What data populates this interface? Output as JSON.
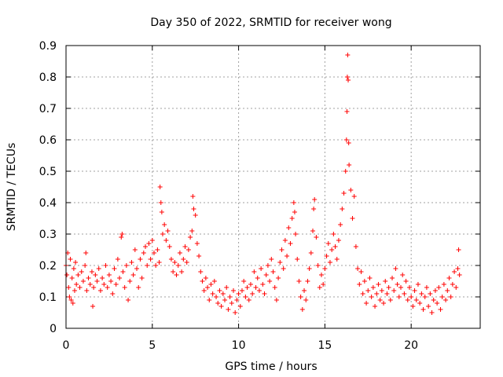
{
  "chart_data": {
    "type": "scatter",
    "title": "Day 350 of 2022, SRMTID for receiver wong",
    "xlabel": "GPS time / hours",
    "ylabel": "SRMTID / TECUs",
    "xlim": [
      0,
      24
    ],
    "ylim": [
      0,
      0.9
    ],
    "xticks": [
      0,
      5,
      10,
      15,
      20
    ],
    "xtick_labels": [
      "0",
      "5",
      "10",
      "15",
      "20"
    ],
    "yticks": [
      0,
      0.1,
      0.2,
      0.3,
      0.4,
      0.5,
      0.6,
      0.7,
      0.8,
      0.9
    ],
    "ytick_labels": [
      "0",
      "0.1",
      "0.2",
      "0.3",
      "0.4",
      "0.5",
      "0.6",
      "0.7",
      "0.8",
      "0.9"
    ],
    "grid": true,
    "marker": "+",
    "color": "#ff0000",
    "series": [
      {
        "name": "SRMTID",
        "points": [
          [
            0.0,
            0.2
          ],
          [
            0.05,
            0.17
          ],
          [
            0.1,
            0.24
          ],
          [
            0.15,
            0.13
          ],
          [
            0.2,
            0.1
          ],
          [
            0.25,
            0.22
          ],
          [
            0.3,
            0.09
          ],
          [
            0.35,
            0.16
          ],
          [
            0.4,
            0.08
          ],
          [
            0.45,
            0.19
          ],
          [
            0.5,
            0.12
          ],
          [
            0.55,
            0.21
          ],
          [
            0.6,
            0.14
          ],
          [
            0.7,
            0.17
          ],
          [
            0.8,
            0.13
          ],
          [
            0.9,
            0.18
          ],
          [
            1.0,
            0.15
          ],
          [
            1.1,
            0.2
          ],
          [
            1.15,
            0.24
          ],
          [
            1.2,
            0.12
          ],
          [
            1.3,
            0.16
          ],
          [
            1.4,
            0.14
          ],
          [
            1.5,
            0.18
          ],
          [
            1.55,
            0.07
          ],
          [
            1.6,
            0.13
          ],
          [
            1.7,
            0.17
          ],
          [
            1.8,
            0.15
          ],
          [
            1.9,
            0.19
          ],
          [
            2.0,
            0.12
          ],
          [
            2.1,
            0.16
          ],
          [
            2.2,
            0.14
          ],
          [
            2.3,
            0.2
          ],
          [
            2.4,
            0.13
          ],
          [
            2.5,
            0.17
          ],
          [
            2.6,
            0.15
          ],
          [
            2.7,
            0.11
          ],
          [
            2.8,
            0.19
          ],
          [
            2.9,
            0.14
          ],
          [
            3.0,
            0.22
          ],
          [
            3.1,
            0.16
          ],
          [
            3.2,
            0.29
          ],
          [
            3.25,
            0.3
          ],
          [
            3.3,
            0.18
          ],
          [
            3.4,
            0.13
          ],
          [
            3.5,
            0.2
          ],
          [
            3.6,
            0.09
          ],
          [
            3.7,
            0.15
          ],
          [
            3.8,
            0.21
          ],
          [
            3.9,
            0.17
          ],
          [
            4.0,
            0.25
          ],
          [
            4.1,
            0.19
          ],
          [
            4.2,
            0.13
          ],
          [
            4.3,
            0.22
          ],
          [
            4.4,
            0.16
          ],
          [
            4.5,
            0.24
          ],
          [
            4.6,
            0.26
          ],
          [
            4.7,
            0.2
          ],
          [
            4.8,
            0.27
          ],
          [
            4.9,
            0.22
          ],
          [
            5.0,
            0.28
          ],
          [
            5.1,
            0.24
          ],
          [
            5.2,
            0.2
          ],
          [
            5.3,
            0.25
          ],
          [
            5.4,
            0.21
          ],
          [
            5.45,
            0.45
          ],
          [
            5.5,
            0.4
          ],
          [
            5.55,
            0.37
          ],
          [
            5.6,
            0.3
          ],
          [
            5.7,
            0.33
          ],
          [
            5.8,
            0.28
          ],
          [
            5.9,
            0.31
          ],
          [
            6.0,
            0.26
          ],
          [
            6.1,
            0.22
          ],
          [
            6.2,
            0.18
          ],
          [
            6.3,
            0.21
          ],
          [
            6.4,
            0.17
          ],
          [
            6.5,
            0.2
          ],
          [
            6.6,
            0.24
          ],
          [
            6.7,
            0.18
          ],
          [
            6.8,
            0.22
          ],
          [
            6.9,
            0.26
          ],
          [
            7.0,
            0.21
          ],
          [
            7.1,
            0.25
          ],
          [
            7.2,
            0.29
          ],
          [
            7.3,
            0.31
          ],
          [
            7.35,
            0.42
          ],
          [
            7.4,
            0.38
          ],
          [
            7.5,
            0.36
          ],
          [
            7.6,
            0.27
          ],
          [
            7.7,
            0.23
          ],
          [
            7.8,
            0.18
          ],
          [
            7.9,
            0.15
          ],
          [
            8.0,
            0.12
          ],
          [
            8.1,
            0.16
          ],
          [
            8.2,
            0.13
          ],
          [
            8.3,
            0.09
          ],
          [
            8.4,
            0.14
          ],
          [
            8.5,
            0.11
          ],
          [
            8.6,
            0.15
          ],
          [
            8.7,
            0.1
          ],
          [
            8.8,
            0.08
          ],
          [
            8.9,
            0.12
          ],
          [
            9.0,
            0.07
          ],
          [
            9.1,
            0.11
          ],
          [
            9.2,
            0.09
          ],
          [
            9.3,
            0.13
          ],
          [
            9.4,
            0.06
          ],
          [
            9.5,
            0.1
          ],
          [
            9.6,
            0.08
          ],
          [
            9.7,
            0.12
          ],
          [
            9.8,
            0.05
          ],
          [
            9.9,
            0.09
          ],
          [
            10.0,
            0.11
          ],
          [
            10.1,
            0.07
          ],
          [
            10.2,
            0.12
          ],
          [
            10.3,
            0.15
          ],
          [
            10.4,
            0.1
          ],
          [
            10.5,
            0.13
          ],
          [
            10.6,
            0.09
          ],
          [
            10.7,
            0.14
          ],
          [
            10.8,
            0.11
          ],
          [
            10.9,
            0.18
          ],
          [
            11.0,
            0.13
          ],
          [
            11.1,
            0.16
          ],
          [
            11.2,
            0.12
          ],
          [
            11.3,
            0.19
          ],
          [
            11.4,
            0.14
          ],
          [
            11.5,
            0.11
          ],
          [
            11.6,
            0.17
          ],
          [
            11.7,
            0.2
          ],
          [
            11.8,
            0.15
          ],
          [
            11.9,
            0.22
          ],
          [
            12.0,
            0.18
          ],
          [
            12.1,
            0.13
          ],
          [
            12.2,
            0.09
          ],
          [
            12.3,
            0.16
          ],
          [
            12.4,
            0.21
          ],
          [
            12.5,
            0.25
          ],
          [
            12.6,
            0.19
          ],
          [
            12.7,
            0.28
          ],
          [
            12.8,
            0.23
          ],
          [
            12.9,
            0.32
          ],
          [
            13.0,
            0.27
          ],
          [
            13.1,
            0.35
          ],
          [
            13.2,
            0.4
          ],
          [
            13.25,
            0.37
          ],
          [
            13.3,
            0.3
          ],
          [
            13.4,
            0.22
          ],
          [
            13.5,
            0.15
          ],
          [
            13.6,
            0.1
          ],
          [
            13.7,
            0.06
          ],
          [
            13.8,
            0.12
          ],
          [
            13.9,
            0.09
          ],
          [
            14.0,
            0.15
          ],
          [
            14.1,
            0.19
          ],
          [
            14.2,
            0.24
          ],
          [
            14.3,
            0.31
          ],
          [
            14.35,
            0.38
          ],
          [
            14.4,
            0.41
          ],
          [
            14.5,
            0.29
          ],
          [
            14.6,
            0.2
          ],
          [
            14.7,
            0.13
          ],
          [
            14.8,
            0.17
          ],
          [
            14.9,
            0.14
          ],
          [
            15.0,
            0.19
          ],
          [
            15.1,
            0.23
          ],
          [
            15.2,
            0.27
          ],
          [
            15.3,
            0.21
          ],
          [
            15.4,
            0.25
          ],
          [
            15.5,
            0.3
          ],
          [
            15.6,
            0.26
          ],
          [
            15.7,
            0.22
          ],
          [
            15.8,
            0.28
          ],
          [
            15.9,
            0.33
          ],
          [
            16.0,
            0.38
          ],
          [
            16.1,
            0.43
          ],
          [
            16.2,
            0.5
          ],
          [
            16.25,
            0.6
          ],
          [
            16.28,
            0.69
          ],
          [
            16.3,
            0.8
          ],
          [
            16.32,
            0.87
          ],
          [
            16.35,
            0.79
          ],
          [
            16.38,
            0.59
          ],
          [
            16.4,
            0.52
          ],
          [
            16.5,
            0.44
          ],
          [
            16.6,
            0.35
          ],
          [
            16.7,
            0.42
          ],
          [
            16.8,
            0.26
          ],
          [
            16.9,
            0.19
          ],
          [
            17.0,
            0.14
          ],
          [
            17.1,
            0.18
          ],
          [
            17.2,
            0.11
          ],
          [
            17.3,
            0.15
          ],
          [
            17.4,
            0.08
          ],
          [
            17.5,
            0.12
          ],
          [
            17.6,
            0.16
          ],
          [
            17.7,
            0.1
          ],
          [
            17.8,
            0.13
          ],
          [
            17.9,
            0.07
          ],
          [
            18.0,
            0.11
          ],
          [
            18.1,
            0.14
          ],
          [
            18.2,
            0.09
          ],
          [
            18.3,
            0.12
          ],
          [
            18.4,
            0.08
          ],
          [
            18.5,
            0.15
          ],
          [
            18.6,
            0.11
          ],
          [
            18.7,
            0.13
          ],
          [
            18.8,
            0.09
          ],
          [
            18.9,
            0.16
          ],
          [
            19.0,
            0.12
          ],
          [
            19.1,
            0.19
          ],
          [
            19.2,
            0.14
          ],
          [
            19.3,
            0.1
          ],
          [
            19.4,
            0.13
          ],
          [
            19.5,
            0.17
          ],
          [
            19.6,
            0.11
          ],
          [
            19.7,
            0.15
          ],
          [
            19.8,
            0.09
          ],
          [
            19.9,
            0.13
          ],
          [
            20.0,
            0.1
          ],
          [
            20.1,
            0.07
          ],
          [
            20.2,
            0.12
          ],
          [
            20.3,
            0.09
          ],
          [
            20.4,
            0.14
          ],
          [
            20.5,
            0.08
          ],
          [
            20.6,
            0.11
          ],
          [
            20.7,
            0.06
          ],
          [
            20.8,
            0.1
          ],
          [
            20.9,
            0.13
          ],
          [
            21.0,
            0.07
          ],
          [
            21.1,
            0.11
          ],
          [
            21.2,
            0.05
          ],
          [
            21.3,
            0.09
          ],
          [
            21.4,
            0.12
          ],
          [
            21.5,
            0.08
          ],
          [
            21.6,
            0.13
          ],
          [
            21.7,
            0.06
          ],
          [
            21.8,
            0.1
          ],
          [
            21.9,
            0.14
          ],
          [
            22.0,
            0.09
          ],
          [
            22.1,
            0.12
          ],
          [
            22.2,
            0.16
          ],
          [
            22.3,
            0.1
          ],
          [
            22.4,
            0.14
          ],
          [
            22.5,
            0.18
          ],
          [
            22.6,
            0.13
          ],
          [
            22.7,
            0.19
          ],
          [
            22.75,
            0.25
          ],
          [
            22.8,
            0.17
          ]
        ]
      }
    ]
  }
}
